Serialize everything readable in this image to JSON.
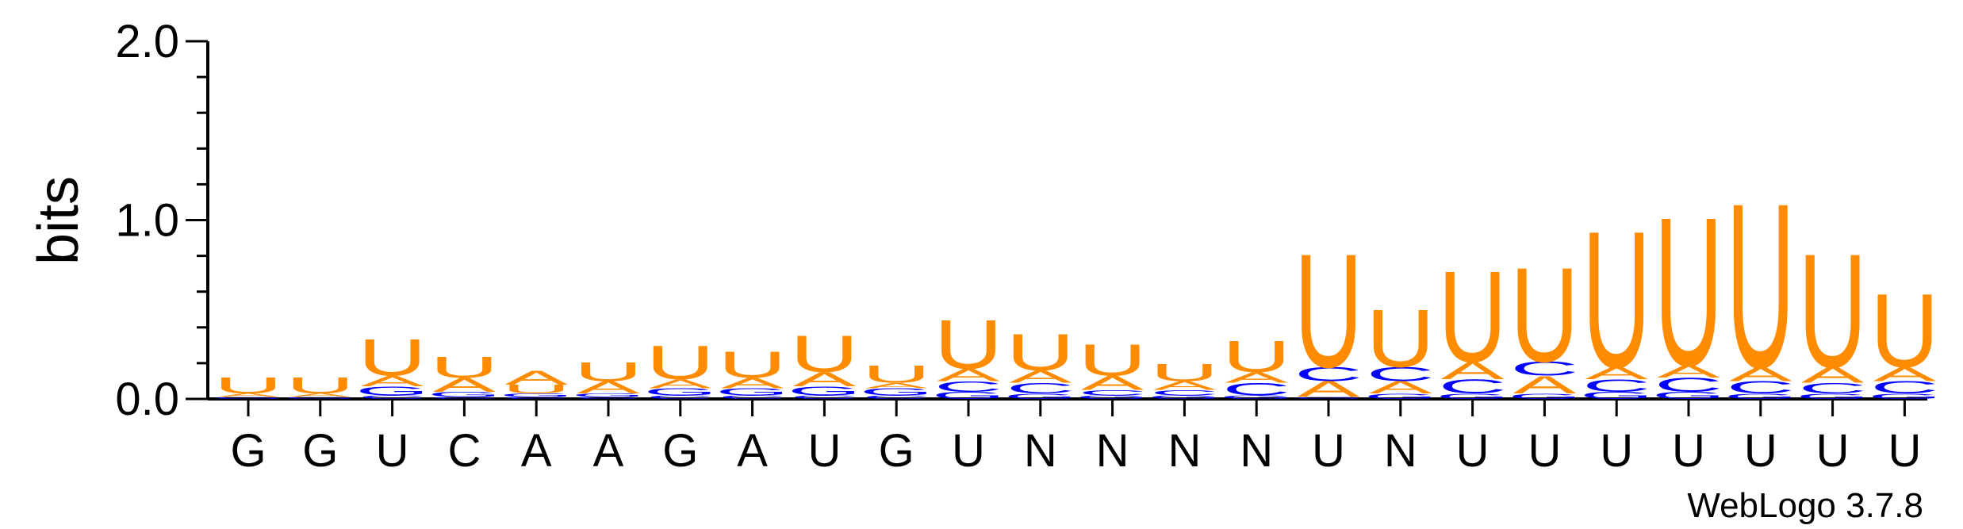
{
  "chart_data": {
    "type": "sequence-logo",
    "title": "",
    "ylabel": "bits",
    "xlabel": "",
    "ylim": [
      0,
      2.0
    ],
    "yticks": [
      "0.0",
      "1.0",
      "2.0"
    ],
    "credit": "WebLogo 3.7.8",
    "colors": {
      "A": "#ff8c00",
      "U": "#ff8c00",
      "C": "#0000ff",
      "G": "#0000ff"
    },
    "positions": [
      {
        "label": "G",
        "stack": [
          {
            "letter": "G",
            "bits": 0.01
          },
          {
            "letter": "A",
            "bits": 0.02
          },
          {
            "letter": "U",
            "bits": 0.09
          }
        ]
      },
      {
        "label": "G",
        "stack": [
          {
            "letter": "G",
            "bits": 0.01
          },
          {
            "letter": "A",
            "bits": 0.02
          },
          {
            "letter": "U",
            "bits": 0.09
          }
        ]
      },
      {
        "label": "U",
        "stack": [
          {
            "letter": "C",
            "bits": 0.02
          },
          {
            "letter": "G",
            "bits": 0.05
          },
          {
            "letter": "A",
            "bits": 0.06
          },
          {
            "letter": "U",
            "bits": 0.21
          }
        ]
      },
      {
        "label": "C",
        "stack": [
          {
            "letter": "C",
            "bits": 0.01
          },
          {
            "letter": "G",
            "bits": 0.03
          },
          {
            "letter": "A",
            "bits": 0.08
          },
          {
            "letter": "U",
            "bits": 0.12
          }
        ]
      },
      {
        "label": "A",
        "stack": [
          {
            "letter": "C",
            "bits": 0.01
          },
          {
            "letter": "G",
            "bits": 0.02
          },
          {
            "letter": "U",
            "bits": 0.05
          },
          {
            "letter": "A",
            "bits": 0.08
          }
        ]
      },
      {
        "label": "A",
        "stack": [
          {
            "letter": "C",
            "bits": 0.01
          },
          {
            "letter": "G",
            "bits": 0.02
          },
          {
            "letter": "A",
            "bits": 0.07
          },
          {
            "letter": "U",
            "bits": 0.11
          }
        ]
      },
      {
        "label": "G",
        "stack": [
          {
            "letter": "C",
            "bits": 0.02
          },
          {
            "letter": "G",
            "bits": 0.04
          },
          {
            "letter": "A",
            "bits": 0.05
          },
          {
            "letter": "U",
            "bits": 0.19
          }
        ]
      },
      {
        "label": "A",
        "stack": [
          {
            "letter": "C",
            "bits": 0.02
          },
          {
            "letter": "G",
            "bits": 0.04
          },
          {
            "letter": "A",
            "bits": 0.06
          },
          {
            "letter": "U",
            "bits": 0.15
          }
        ]
      },
      {
        "label": "U",
        "stack": [
          {
            "letter": "C",
            "bits": 0.02
          },
          {
            "letter": "G",
            "bits": 0.05
          },
          {
            "letter": "A",
            "bits": 0.08
          },
          {
            "letter": "U",
            "bits": 0.21
          }
        ]
      },
      {
        "label": "G",
        "stack": [
          {
            "letter": "C",
            "bits": 0.02
          },
          {
            "letter": "G",
            "bits": 0.04
          },
          {
            "letter": "A",
            "bits": 0.03
          },
          {
            "letter": "U",
            "bits": 0.1
          }
        ]
      },
      {
        "label": "U",
        "stack": [
          {
            "letter": "G",
            "bits": 0.04
          },
          {
            "letter": "C",
            "bits": 0.06
          },
          {
            "letter": "A",
            "bits": 0.07
          },
          {
            "letter": "U",
            "bits": 0.28
          }
        ]
      },
      {
        "label": "N",
        "stack": [
          {
            "letter": "G",
            "bits": 0.03
          },
          {
            "letter": "C",
            "bits": 0.06
          },
          {
            "letter": "A",
            "bits": 0.07
          },
          {
            "letter": "U",
            "bits": 0.21
          }
        ]
      },
      {
        "label": "N",
        "stack": [
          {
            "letter": "G",
            "bits": 0.02
          },
          {
            "letter": "C",
            "bits": 0.03
          },
          {
            "letter": "A",
            "bits": 0.08
          },
          {
            "letter": "U",
            "bits": 0.18
          }
        ]
      },
      {
        "label": "N",
        "stack": [
          {
            "letter": "G",
            "bits": 0.02
          },
          {
            "letter": "C",
            "bits": 0.03
          },
          {
            "letter": "A",
            "bits": 0.05
          },
          {
            "letter": "U",
            "bits": 0.1
          }
        ]
      },
      {
        "label": "N",
        "stack": [
          {
            "letter": "G",
            "bits": 0.02
          },
          {
            "letter": "C",
            "bits": 0.07
          },
          {
            "letter": "A",
            "bits": 0.06
          },
          {
            "letter": "U",
            "bits": 0.18
          }
        ]
      },
      {
        "label": "U",
        "stack": [
          {
            "letter": "G",
            "bits": 0.01
          },
          {
            "letter": "A",
            "bits": 0.09
          },
          {
            "letter": "C",
            "bits": 0.08
          },
          {
            "letter": "U",
            "bits": 0.65
          }
        ]
      },
      {
        "label": "N",
        "stack": [
          {
            "letter": "G",
            "bits": 0.03
          },
          {
            "letter": "A",
            "bits": 0.07
          },
          {
            "letter": "C",
            "bits": 0.08
          },
          {
            "letter": "U",
            "bits": 0.33
          }
        ]
      },
      {
        "label": "U",
        "stack": [
          {
            "letter": "G",
            "bits": 0.03
          },
          {
            "letter": "C",
            "bits": 0.08
          },
          {
            "letter": "A",
            "bits": 0.1
          },
          {
            "letter": "U",
            "bits": 0.52
          }
        ]
      },
      {
        "label": "U",
        "stack": [
          {
            "letter": "G",
            "bits": 0.03
          },
          {
            "letter": "A",
            "bits": 0.1
          },
          {
            "letter": "C",
            "bits": 0.08
          },
          {
            "letter": "U",
            "bits": 0.54
          }
        ]
      },
      {
        "label": "U",
        "stack": [
          {
            "letter": "G",
            "bits": 0.04
          },
          {
            "letter": "C",
            "bits": 0.07
          },
          {
            "letter": "A",
            "bits": 0.07
          },
          {
            "letter": "U",
            "bits": 0.78
          }
        ]
      },
      {
        "label": "U",
        "stack": [
          {
            "letter": "G",
            "bits": 0.04
          },
          {
            "letter": "C",
            "bits": 0.08
          },
          {
            "letter": "A",
            "bits": 0.07
          },
          {
            "letter": "U",
            "bits": 0.85
          }
        ]
      },
      {
        "label": "U",
        "stack": [
          {
            "letter": "G",
            "bits": 0.03
          },
          {
            "letter": "C",
            "bits": 0.07
          },
          {
            "letter": "A",
            "bits": 0.08
          },
          {
            "letter": "U",
            "bits": 0.94
          }
        ]
      },
      {
        "label": "U",
        "stack": [
          {
            "letter": "G",
            "bits": 0.03
          },
          {
            "letter": "C",
            "bits": 0.06
          },
          {
            "letter": "A",
            "bits": 0.09
          },
          {
            "letter": "U",
            "bits": 0.65
          }
        ]
      },
      {
        "label": "U",
        "stack": [
          {
            "letter": "G",
            "bits": 0.03
          },
          {
            "letter": "C",
            "bits": 0.07
          },
          {
            "letter": "A",
            "bits": 0.08
          },
          {
            "letter": "U",
            "bits": 0.42
          }
        ]
      }
    ]
  }
}
